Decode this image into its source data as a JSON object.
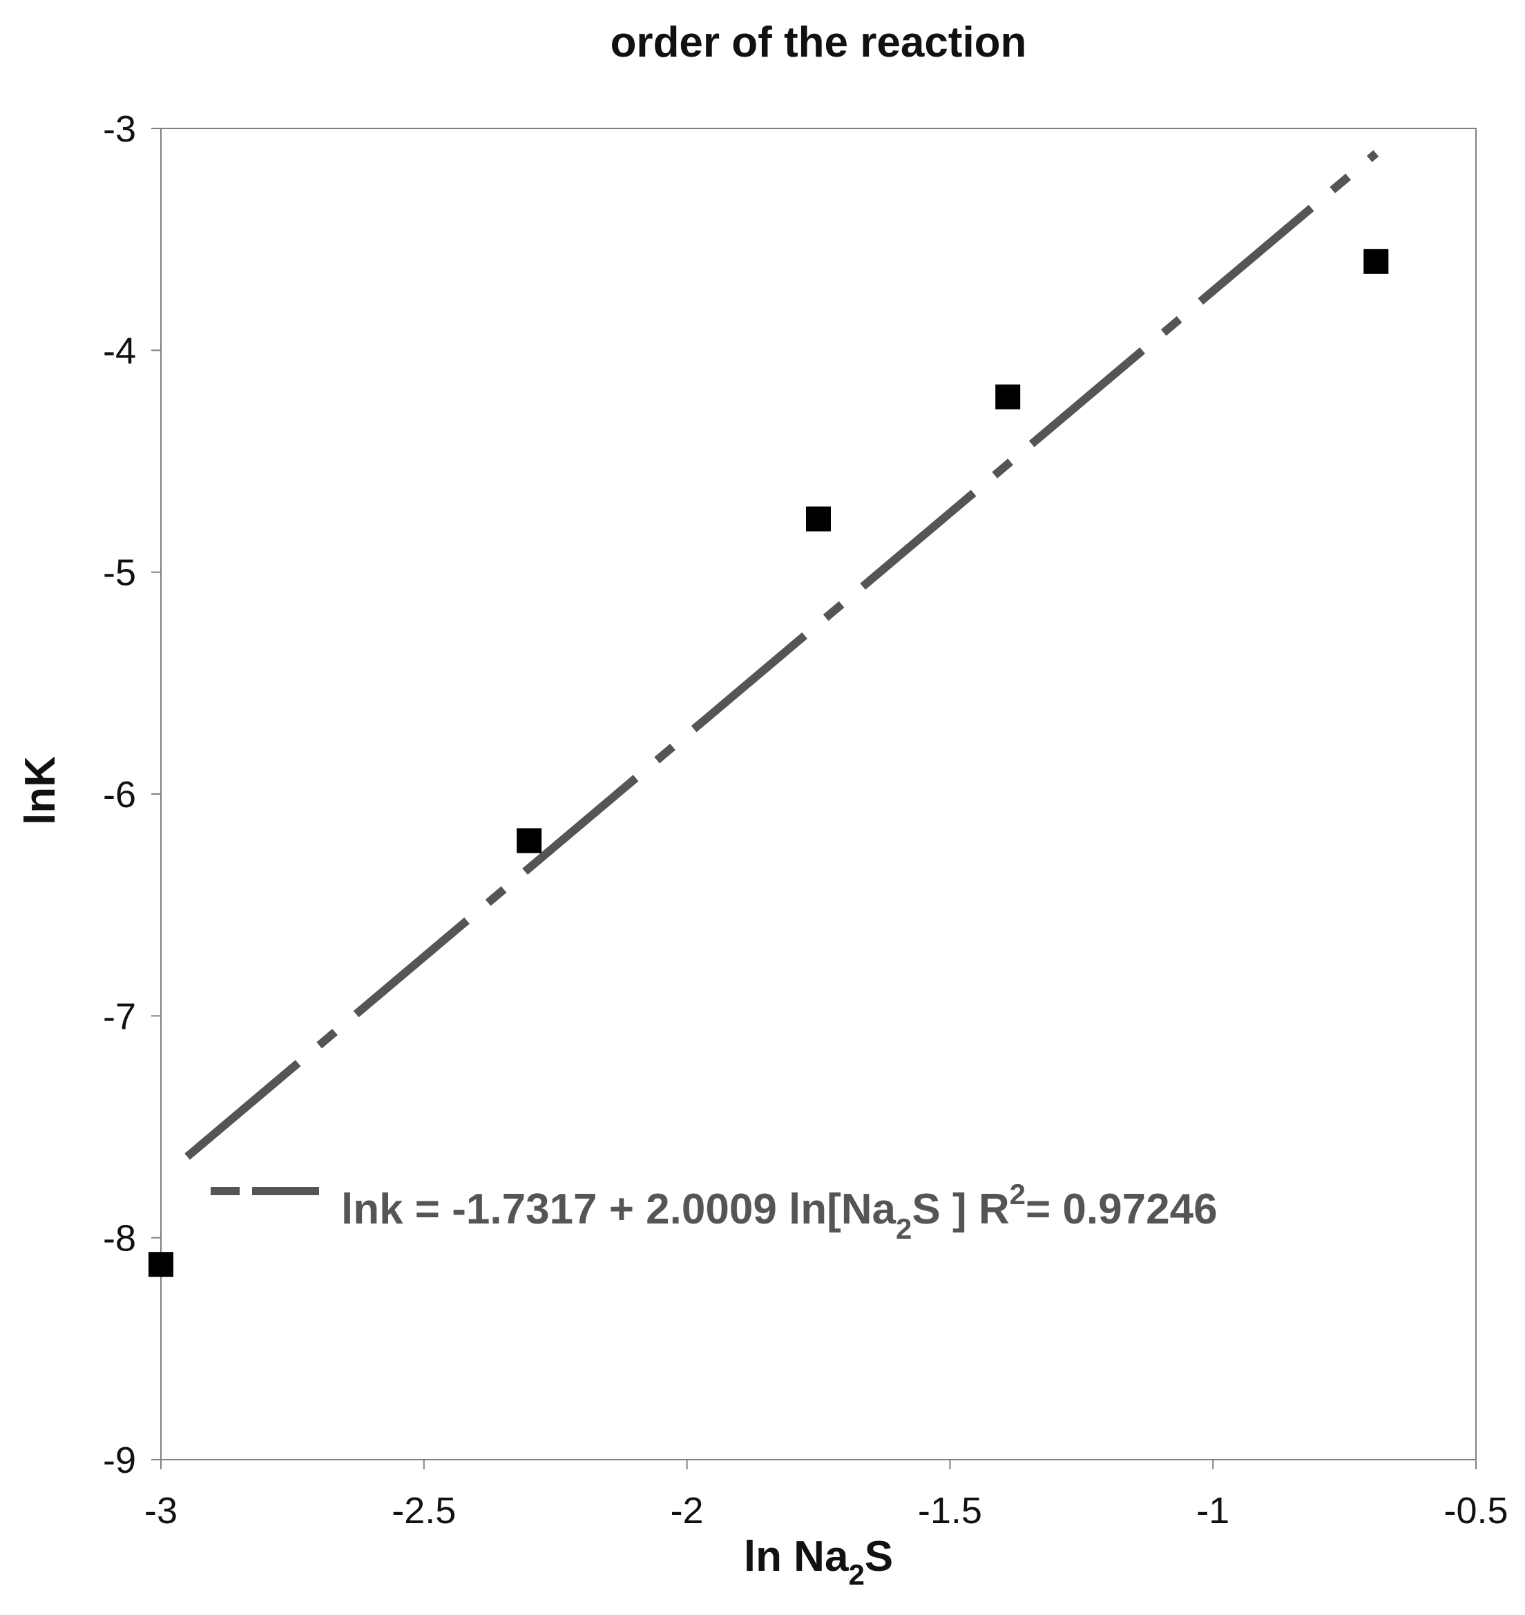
{
  "chart_data": {
    "type": "scatter",
    "title": "order of the reaction",
    "xlabel": {
      "main": "ln Na",
      "sub": "2",
      "end": "S"
    },
    "ylabel": "lnK",
    "xlim": [
      -3,
      -0.5
    ],
    "ylim": [
      -9,
      -3
    ],
    "x_ticks": [
      "-3",
      "-2.5",
      "-2",
      "-1.5",
      "-1",
      "-0.5"
    ],
    "y_ticks": [
      "-3",
      "-4",
      "-5",
      "-6",
      "-7",
      "-8",
      "-9"
    ],
    "grid": false,
    "series": [
      {
        "marker": "square",
        "color": "#000000",
        "points": [
          {
            "x": -3.0,
            "y": -8.12
          },
          {
            "x": -2.3,
            "y": -6.21
          },
          {
            "x": -1.75,
            "y": -4.76
          },
          {
            "x": -1.39,
            "y": -4.21
          },
          {
            "x": -0.69,
            "y": -3.6
          }
        ]
      }
    ],
    "fit_line": {
      "style": "dashed",
      "color": "#555555",
      "intercept": -1.7317,
      "slope": 2.0009,
      "x_range": [
        -2.95,
        -0.69
      ]
    },
    "legend": {
      "placement": "bottom-left",
      "label": {
        "main": "lnk = -1.7317 + 2.0009 ln[Na",
        "sub": "2",
        "end": "S ]  R",
        "sup": "2",
        "tail": "= 0.97246"
      }
    }
  }
}
